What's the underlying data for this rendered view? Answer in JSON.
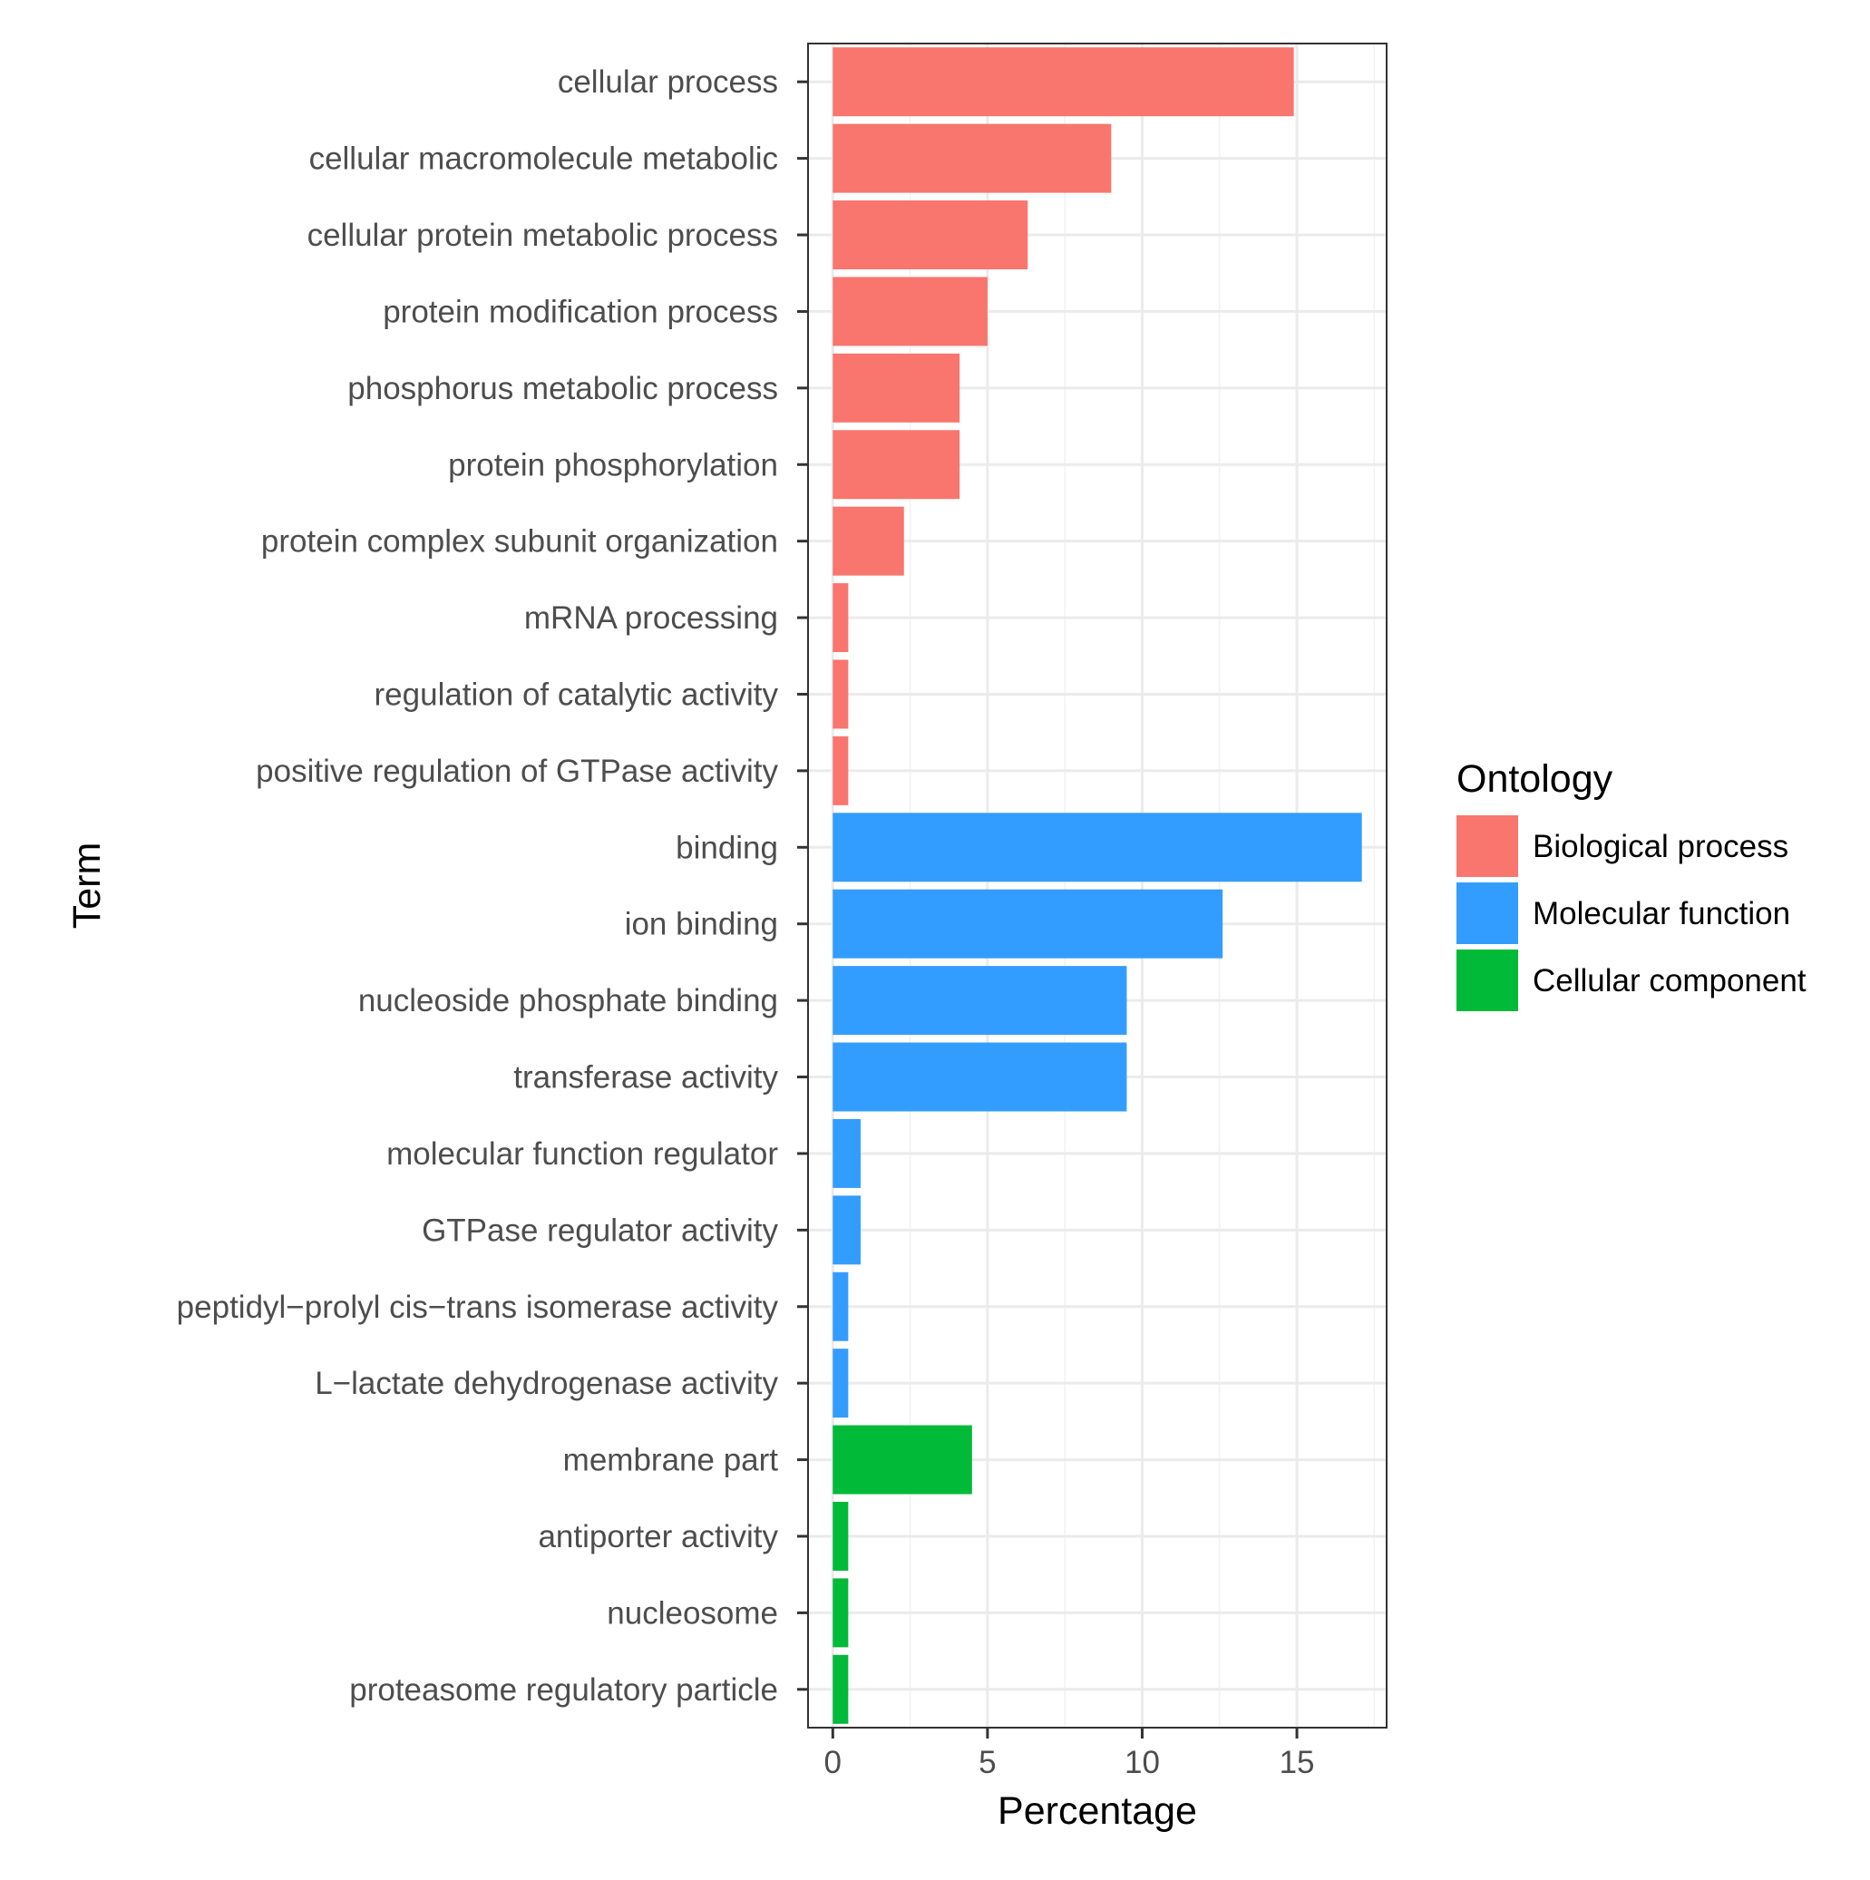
{
  "chart_data": {
    "type": "bar",
    "orientation": "horizontal",
    "xlabel": "Percentage",
    "ylabel": "Term",
    "xlim": [
      -0.8,
      17.9
    ],
    "x_ticks": [
      0,
      5,
      10,
      15
    ],
    "grid": true,
    "legend": {
      "title": "Ontology",
      "position": "right",
      "entries": [
        {
          "name": "Biological process",
          "color": "#F8766D"
        },
        {
          "name": "Molecular function",
          "color": "#339DFF"
        },
        {
          "name": "Cellular component",
          "color": "#00BA38"
        }
      ]
    },
    "categories": [
      "cellular process",
      "cellular macromolecule metabolic",
      "cellular protein metabolic process",
      "protein modification process",
      "phosphorus metabolic process",
      "protein phosphorylation",
      "protein complex subunit organization",
      "mRNA processing",
      "regulation of catalytic activity",
      "positive regulation of GTPase activity",
      "binding",
      "ion binding",
      "nucleoside phosphate binding",
      "transferase activity",
      "molecular function regulator",
      "GTPase regulator activity",
      "peptidyl−prolyl cis−trans isomerase activity",
      "L−lactate dehydrogenase activity",
      "membrane part",
      "antiporter activity",
      "nucleosome",
      "proteasome regulatory particle"
    ],
    "values": [
      14.9,
      9.0,
      6.3,
      5.0,
      4.1,
      4.1,
      2.3,
      0.5,
      0.5,
      0.5,
      17.1,
      12.6,
      9.5,
      9.5,
      0.9,
      0.9,
      0.5,
      0.5,
      4.5,
      0.5,
      0.5,
      0.5
    ],
    "groups": [
      "Biological process",
      "Biological process",
      "Biological process",
      "Biological process",
      "Biological process",
      "Biological process",
      "Biological process",
      "Biological process",
      "Biological process",
      "Biological process",
      "Molecular function",
      "Molecular function",
      "Molecular function",
      "Molecular function",
      "Molecular function",
      "Molecular function",
      "Molecular function",
      "Molecular function",
      "Cellular component",
      "Cellular component",
      "Cellular component",
      "Cellular component"
    ]
  }
}
